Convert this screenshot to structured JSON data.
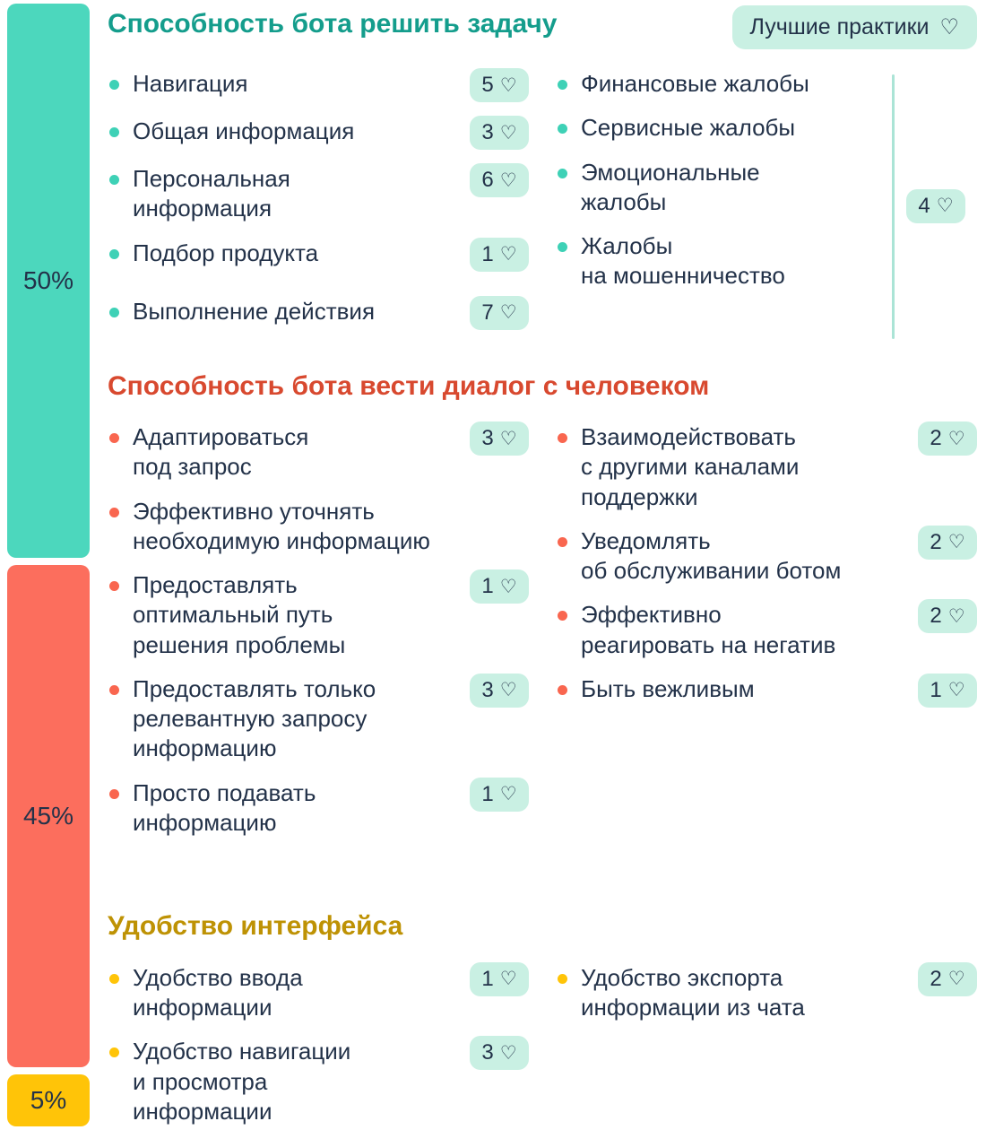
{
  "icons": {
    "heart": "♡"
  },
  "sidebar": {
    "segments": [
      {
        "label": "50%",
        "color": "#4CD7BD"
      },
      {
        "label": "45%",
        "color": "#FC6E5D"
      },
      {
        "label": "5%",
        "color": "#FFC408"
      }
    ]
  },
  "best_practices": {
    "label": "Лучшие практики"
  },
  "sections": [
    {
      "title": "Способность бота решить задачу",
      "title_color": "#149D8C",
      "left_items": [
        {
          "text": "Навигация",
          "badge": "5"
        },
        {
          "text": "Общая информация",
          "badge": "3"
        },
        {
          "text": "Персональная информация",
          "badge": "6"
        },
        {
          "text": "Подбор продукта",
          "badge": "1"
        },
        {
          "text": "Выполнение действия",
          "badge": "7"
        }
      ],
      "right_items": [
        {
          "text": "Финансовые жалобы"
        },
        {
          "text": "Сервисные жалобы"
        },
        {
          "text": "Эмоциональные жалобы"
        },
        {
          "text": "Жалобы на мошенничество"
        }
      ],
      "group_badge": "4"
    },
    {
      "title": "Способность бота вести диалог с человеком",
      "title_color": "#D8492F",
      "left_items": [
        {
          "text": "Адаптироваться под запрос",
          "badge": "3"
        },
        {
          "text": "Эффективно уточнять необходимую информацию"
        },
        {
          "text": "Предоставлять оптимальный путь решения проблемы",
          "badge": "1"
        },
        {
          "text": "Предоставлять только релевантную запросу информацию",
          "badge": "3"
        },
        {
          "text": "Просто подавать информацию",
          "badge": "1"
        }
      ],
      "right_items": [
        {
          "text": "Взаимодействовать с другими каналами поддержки",
          "badge": "2"
        },
        {
          "text": "Уведомлять об обслуживании ботом",
          "badge": "2"
        },
        {
          "text": "Эффективно реагировать на негатив",
          "badge": "2"
        },
        {
          "text": "Быть вежливым",
          "badge": "1"
        }
      ]
    },
    {
      "title": "Удобство интерфейса",
      "title_color": "#BE9204",
      "left_items": [
        {
          "text": "Удобство ввода информации",
          "badge": "1"
        },
        {
          "text": "Удобство навигации и просмотра информации",
          "badge": "3"
        }
      ],
      "right_items": [
        {
          "text": "Удобство экспорта информации из чата",
          "badge": "2"
        }
      ]
    }
  ]
}
